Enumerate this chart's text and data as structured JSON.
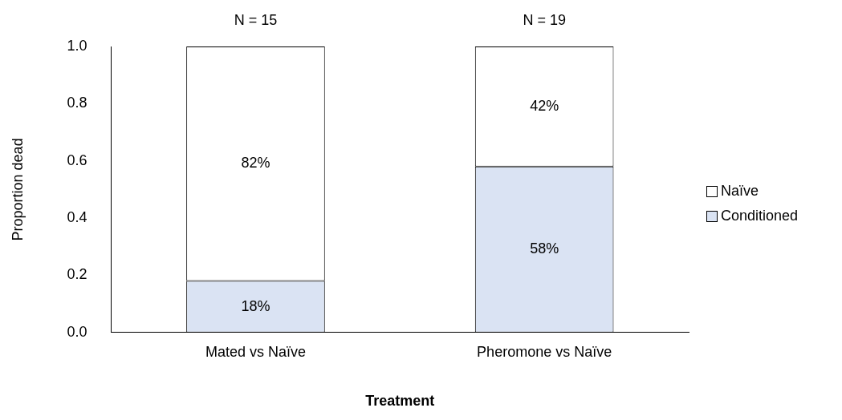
{
  "chart_data": {
    "type": "bar",
    "stacked": true,
    "xlabel": "Treatment",
    "ylabel": "Proportion dead",
    "categories": [
      "Mated vs Naïve",
      "Pheromone vs Naïve"
    ],
    "series": [
      {
        "name": "Conditioned",
        "color": "#dae3f3",
        "values": [
          0.18,
          0.58
        ],
        "value_labels": [
          "18%",
          "58%"
        ]
      },
      {
        "name": "Naïve",
        "color": "#ffffff",
        "values": [
          0.82,
          0.42
        ],
        "value_labels": [
          "82%",
          "42%"
        ]
      }
    ],
    "ylim": [
      0,
      1
    ],
    "yticks": [
      {
        "value": 0,
        "label": "0.0"
      },
      {
        "value": 0.2,
        "label": "0.2"
      },
      {
        "value": 0.4,
        "label": "0.4"
      },
      {
        "value": 0.6,
        "label": "0.6"
      },
      {
        "value": 0.8,
        "label": "0.8"
      },
      {
        "value": 1,
        "label": "1.0"
      }
    ],
    "grid": false,
    "legend": "right",
    "annotations": [
      "N = 15",
      "N = 19"
    ]
  }
}
